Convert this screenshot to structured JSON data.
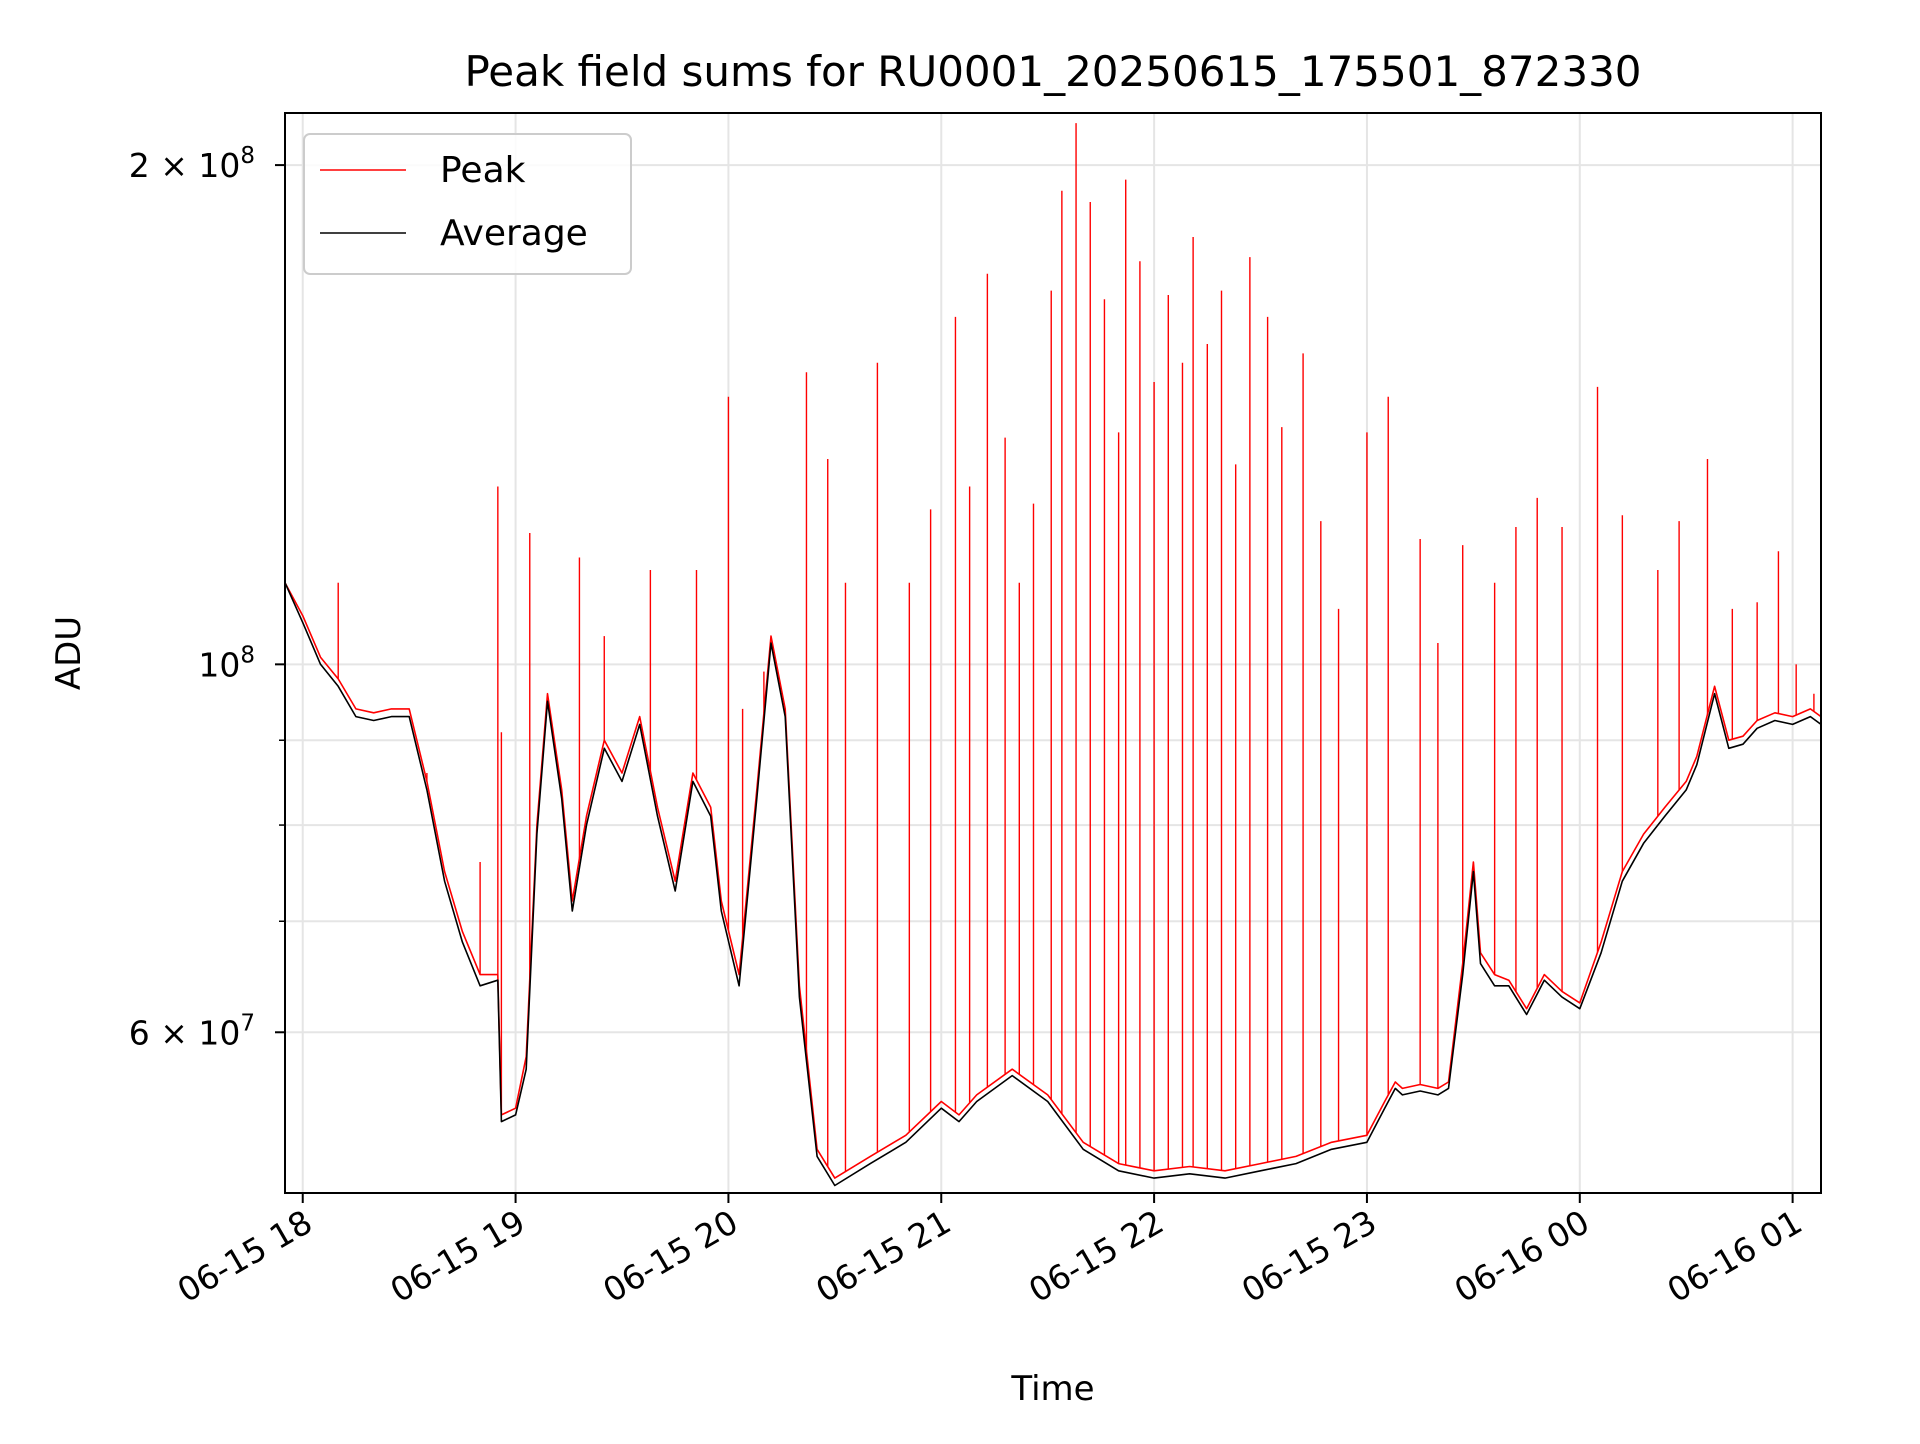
{
  "chart_data": {
    "type": "line",
    "title": "Peak field sums for RU0001_20250615_175501_872330",
    "xlabel": "Time",
    "ylabel": "ADU",
    "y_scale": "log",
    "grid": true,
    "legend_position": "top-left",
    "xlim": [
      "2025-06-15 17:55",
      "2025-06-16 01:08"
    ],
    "ylim": [
      48000000,
      215000000
    ],
    "x_ticks": [
      {
        "t": "2025-06-15 18:00",
        "label": "06-15 18"
      },
      {
        "t": "2025-06-15 19:00",
        "label": "06-15 19"
      },
      {
        "t": "2025-06-15 20:00",
        "label": "06-15 20"
      },
      {
        "t": "2025-06-15 21:00",
        "label": "06-15 21"
      },
      {
        "t": "2025-06-15 22:00",
        "label": "06-15 22"
      },
      {
        "t": "2025-06-15 23:00",
        "label": "06-15 23"
      },
      {
        "t": "2025-06-16 00:00",
        "label": "06-16 00"
      },
      {
        "t": "2025-06-16 01:00",
        "label": "06-16 01"
      }
    ],
    "y_ticks": [
      {
        "v": 60000000,
        "label": "6 × 10",
        "exp": "7"
      },
      {
        "v": 100000000,
        "label": "10",
        "exp": "8"
      },
      {
        "v": 200000000,
        "label": "2 × 10",
        "exp": "8"
      }
    ],
    "y_minor_ticks": [
      70000000,
      80000000,
      90000000
    ],
    "series": [
      {
        "name": "Peak",
        "color": "#ff0000",
        "baseline": [
          [
            "2025-06-15 17:55",
            112000000
          ],
          [
            "2025-06-15 18:00",
            107000000
          ],
          [
            "2025-06-15 18:05",
            101000000
          ],
          [
            "2025-06-15 18:10",
            98000000
          ],
          [
            "2025-06-15 18:15",
            94000000
          ],
          [
            "2025-06-15 18:20",
            93500000
          ],
          [
            "2025-06-15 18:25",
            94000000
          ],
          [
            "2025-06-15 18:30",
            94000000
          ],
          [
            "2025-06-15 18:35",
            85000000
          ],
          [
            "2025-06-15 18:40",
            75000000
          ],
          [
            "2025-06-15 18:45",
            69000000
          ],
          [
            "2025-06-15 18:50",
            65000000
          ],
          [
            "2025-06-15 18:55",
            65000000
          ],
          [
            "2025-06-15 18:56",
            53500000
          ],
          [
            "2025-06-15 19:00",
            54000000
          ],
          [
            "2025-06-15 19:03",
            58000000
          ],
          [
            "2025-06-15 19:06",
            80000000
          ],
          [
            "2025-06-15 19:09",
            96000000
          ],
          [
            "2025-06-15 19:13",
            84000000
          ],
          [
            "2025-06-15 19:16",
            72000000
          ],
          [
            "2025-06-15 19:20",
            81000000
          ],
          [
            "2025-06-15 19:25",
            90000000
          ],
          [
            "2025-06-15 19:30",
            86000000
          ],
          [
            "2025-06-15 19:35",
            93000000
          ],
          [
            "2025-06-15 19:40",
            82000000
          ],
          [
            "2025-06-15 19:45",
            74000000
          ],
          [
            "2025-06-15 19:50",
            86000000
          ],
          [
            "2025-06-15 19:55",
            82000000
          ],
          [
            "2025-06-15 19:58",
            72000000
          ],
          [
            "2025-06-15 20:03",
            65000000
          ],
          [
            "2025-06-15 20:08",
            84000000
          ],
          [
            "2025-06-15 20:12",
            104000000
          ],
          [
            "2025-06-15 20:16",
            94000000
          ],
          [
            "2025-06-15 20:20",
            64000000
          ],
          [
            "2025-06-15 20:25",
            51000000
          ],
          [
            "2025-06-15 20:30",
            49000000
          ],
          [
            "2025-06-15 20:40",
            50500000
          ],
          [
            "2025-06-15 20:50",
            52000000
          ],
          [
            "2025-06-15 21:00",
            54500000
          ],
          [
            "2025-06-15 21:05",
            53500000
          ],
          [
            "2025-06-15 21:10",
            55000000
          ],
          [
            "2025-06-15 21:20",
            57000000
          ],
          [
            "2025-06-15 21:30",
            55000000
          ],
          [
            "2025-06-15 21:40",
            51500000
          ],
          [
            "2025-06-15 21:50",
            50000000
          ],
          [
            "2025-06-15 22:00",
            49500000
          ],
          [
            "2025-06-15 22:10",
            49800000
          ],
          [
            "2025-06-15 22:20",
            49500000
          ],
          [
            "2025-06-15 22:30",
            50000000
          ],
          [
            "2025-06-15 22:40",
            50500000
          ],
          [
            "2025-06-15 22:50",
            51500000
          ],
          [
            "2025-06-15 23:00",
            52000000
          ],
          [
            "2025-06-15 23:05",
            54500000
          ],
          [
            "2025-06-15 23:08",
            56000000
          ],
          [
            "2025-06-15 23:10",
            55500000
          ],
          [
            "2025-06-15 23:15",
            55800000
          ],
          [
            "2025-06-15 23:20",
            55500000
          ],
          [
            "2025-06-15 23:23",
            56000000
          ],
          [
            "2025-06-15 23:27",
            66000000
          ],
          [
            "2025-06-15 23:30",
            76000000
          ],
          [
            "2025-06-15 23:32",
            67000000
          ],
          [
            "2025-06-15 23:36",
            65000000
          ],
          [
            "2025-06-15 23:40",
            64500000
          ],
          [
            "2025-06-15 23:45",
            62000000
          ],
          [
            "2025-06-15 23:50",
            65000000
          ],
          [
            "2025-06-15 23:55",
            63500000
          ],
          [
            "2025-06-16 00:00",
            62500000
          ],
          [
            "2025-06-16 00:06",
            68000000
          ],
          [
            "2025-06-16 00:12",
            75000000
          ],
          [
            "2025-06-16 00:18",
            79000000
          ],
          [
            "2025-06-16 00:24",
            82000000
          ],
          [
            "2025-06-16 00:30",
            85000000
          ],
          [
            "2025-06-16 00:33",
            88000000
          ],
          [
            "2025-06-16 00:38",
            97000000
          ],
          [
            "2025-06-16 00:42",
            90000000
          ],
          [
            "2025-06-16 00:46",
            90500000
          ],
          [
            "2025-06-16 00:50",
            92500000
          ],
          [
            "2025-06-16 00:55",
            93500000
          ],
          [
            "2025-06-16 01:00",
            93000000
          ],
          [
            "2025-06-16 01:05",
            94000000
          ],
          [
            "2025-06-16 01:08",
            93000000
          ]
        ],
        "spikes": [
          [
            "2025-06-15 18:10",
            112000000
          ],
          [
            "2025-06-15 18:35",
            86000000
          ],
          [
            "2025-06-15 18:50",
            76000000
          ],
          [
            "2025-06-15 18:55",
            128000000
          ],
          [
            "2025-06-15 18:56",
            91000000
          ],
          [
            "2025-06-15 19:04",
            120000000
          ],
          [
            "2025-06-15 19:18",
            116000000
          ],
          [
            "2025-06-15 19:25",
            104000000
          ],
          [
            "2025-06-15 19:38",
            114000000
          ],
          [
            "2025-06-15 19:51",
            114000000
          ],
          [
            "2025-06-15 20:00",
            145000000
          ],
          [
            "2025-06-15 20:04",
            94000000
          ],
          [
            "2025-06-15 20:10",
            99000000
          ],
          [
            "2025-06-15 20:22",
            150000000
          ],
          [
            "2025-06-15 20:28",
            133000000
          ],
          [
            "2025-06-15 20:33",
            112000000
          ],
          [
            "2025-06-15 20:42",
            152000000
          ],
          [
            "2025-06-15 20:51",
            112000000
          ],
          [
            "2025-06-15 20:57",
            124000000
          ],
          [
            "2025-06-15 21:04",
            162000000
          ],
          [
            "2025-06-15 21:08",
            128000000
          ],
          [
            "2025-06-15 21:13",
            172000000
          ],
          [
            "2025-06-15 21:18",
            137000000
          ],
          [
            "2025-06-15 21:22",
            112000000
          ],
          [
            "2025-06-15 21:26",
            125000000
          ],
          [
            "2025-06-15 21:31",
            168000000
          ],
          [
            "2025-06-15 21:34",
            193000000
          ],
          [
            "2025-06-15 21:38",
            212000000
          ],
          [
            "2025-06-15 21:42",
            190000000
          ],
          [
            "2025-06-15 21:46",
            166000000
          ],
          [
            "2025-06-15 21:50",
            138000000
          ],
          [
            "2025-06-15 21:52",
            196000000
          ],
          [
            "2025-06-15 21:56",
            175000000
          ],
          [
            "2025-06-15 22:00",
            148000000
          ],
          [
            "2025-06-15 22:04",
            167000000
          ],
          [
            "2025-06-15 22:08",
            152000000
          ],
          [
            "2025-06-15 22:11",
            181000000
          ],
          [
            "2025-06-15 22:15",
            156000000
          ],
          [
            "2025-06-15 22:19",
            168000000
          ],
          [
            "2025-06-15 22:23",
            132000000
          ],
          [
            "2025-06-15 22:27",
            176000000
          ],
          [
            "2025-06-15 22:32",
            162000000
          ],
          [
            "2025-06-15 22:36",
            139000000
          ],
          [
            "2025-06-15 22:42",
            154000000
          ],
          [
            "2025-06-15 22:47",
            122000000
          ],
          [
            "2025-06-15 22:52",
            108000000
          ],
          [
            "2025-06-15 23:00",
            138000000
          ],
          [
            "2025-06-15 23:06",
            145000000
          ],
          [
            "2025-06-15 23:15",
            119000000
          ],
          [
            "2025-06-15 23:20",
            103000000
          ],
          [
            "2025-06-15 23:27",
            118000000
          ],
          [
            "2025-06-15 23:36",
            112000000
          ],
          [
            "2025-06-15 23:42",
            121000000
          ],
          [
            "2025-06-15 23:48",
            126000000
          ],
          [
            "2025-06-15 23:55",
            121000000
          ],
          [
            "2025-06-16 00:05",
            147000000
          ],
          [
            "2025-06-16 00:12",
            123000000
          ],
          [
            "2025-06-16 00:22",
            114000000
          ],
          [
            "2025-06-16 00:28",
            122000000
          ],
          [
            "2025-06-16 00:36",
            133000000
          ],
          [
            "2025-06-16 00:43",
            108000000
          ],
          [
            "2025-06-16 00:50",
            109000000
          ],
          [
            "2025-06-16 00:56",
            117000000
          ],
          [
            "2025-06-16 01:01",
            100000000
          ],
          [
            "2025-06-16 01:06",
            96000000
          ]
        ]
      },
      {
        "name": "Average",
        "color": "#000000",
        "values": [
          [
            "2025-06-15 17:55",
            112000000
          ],
          [
            "2025-06-15 18:00",
            106000000
          ],
          [
            "2025-06-15 18:05",
            100000000
          ],
          [
            "2025-06-15 18:10",
            97000000
          ],
          [
            "2025-06-15 18:15",
            93000000
          ],
          [
            "2025-06-15 18:20",
            92500000
          ],
          [
            "2025-06-15 18:25",
            93000000
          ],
          [
            "2025-06-15 18:30",
            93000000
          ],
          [
            "2025-06-15 18:35",
            84000000
          ],
          [
            "2025-06-15 18:40",
            74000000
          ],
          [
            "2025-06-15 18:45",
            68000000
          ],
          [
            "2025-06-15 18:50",
            64000000
          ],
          [
            "2025-06-15 18:55",
            64500000
          ],
          [
            "2025-06-15 18:56",
            53000000
          ],
          [
            "2025-06-15 19:00",
            53500000
          ],
          [
            "2025-06-15 19:03",
            57000000
          ],
          [
            "2025-06-15 19:06",
            79000000
          ],
          [
            "2025-06-15 19:09",
            95000000
          ],
          [
            "2025-06-15 19:13",
            83000000
          ],
          [
            "2025-06-15 19:16",
            71000000
          ],
          [
            "2025-06-15 19:20",
            80000000
          ],
          [
            "2025-06-15 19:25",
            89000000
          ],
          [
            "2025-06-15 19:30",
            85000000
          ],
          [
            "2025-06-15 19:35",
            92000000
          ],
          [
            "2025-06-15 19:40",
            81000000
          ],
          [
            "2025-06-15 19:45",
            73000000
          ],
          [
            "2025-06-15 19:50",
            85000000
          ],
          [
            "2025-06-15 19:55",
            81000000
          ],
          [
            "2025-06-15 19:58",
            71000000
          ],
          [
            "2025-06-15 20:03",
            64000000
          ],
          [
            "2025-06-15 20:08",
            83000000
          ],
          [
            "2025-06-15 20:12",
            103000000
          ],
          [
            "2025-06-15 20:16",
            93000000
          ],
          [
            "2025-06-15 20:20",
            63000000
          ],
          [
            "2025-06-15 20:25",
            50500000
          ],
          [
            "2025-06-15 20:30",
            48500000
          ],
          [
            "2025-06-15 20:40",
            50000000
          ],
          [
            "2025-06-15 20:50",
            51500000
          ],
          [
            "2025-06-15 21:00",
            54000000
          ],
          [
            "2025-06-15 21:05",
            53000000
          ],
          [
            "2025-06-15 21:10",
            54500000
          ],
          [
            "2025-06-15 21:20",
            56500000
          ],
          [
            "2025-06-15 21:30",
            54500000
          ],
          [
            "2025-06-15 21:40",
            51000000
          ],
          [
            "2025-06-15 21:50",
            49500000
          ],
          [
            "2025-06-15 22:00",
            49000000
          ],
          [
            "2025-06-15 22:10",
            49300000
          ],
          [
            "2025-06-15 22:20",
            49000000
          ],
          [
            "2025-06-15 22:30",
            49500000
          ],
          [
            "2025-06-15 22:40",
            50000000
          ],
          [
            "2025-06-15 22:50",
            51000000
          ],
          [
            "2025-06-15 23:00",
            51500000
          ],
          [
            "2025-06-15 23:05",
            54000000
          ],
          [
            "2025-06-15 23:08",
            55500000
          ],
          [
            "2025-06-15 23:10",
            55000000
          ],
          [
            "2025-06-15 23:15",
            55300000
          ],
          [
            "2025-06-15 23:20",
            55000000
          ],
          [
            "2025-06-15 23:23",
            55500000
          ],
          [
            "2025-06-15 23:27",
            65000000
          ],
          [
            "2025-06-15 23:30",
            75000000
          ],
          [
            "2025-06-15 23:32",
            66000000
          ],
          [
            "2025-06-15 23:36",
            64000000
          ],
          [
            "2025-06-15 23:40",
            64000000
          ],
          [
            "2025-06-15 23:45",
            61500000
          ],
          [
            "2025-06-15 23:50",
            64500000
          ],
          [
            "2025-06-15 23:55",
            63000000
          ],
          [
            "2025-06-16 00:00",
            62000000
          ],
          [
            "2025-06-16 00:06",
            67000000
          ],
          [
            "2025-06-16 00:12",
            74000000
          ],
          [
            "2025-06-16 00:18",
            78000000
          ],
          [
            "2025-06-16 00:24",
            81000000
          ],
          [
            "2025-06-16 00:30",
            84000000
          ],
          [
            "2025-06-16 00:33",
            87000000
          ],
          [
            "2025-06-16 00:38",
            96000000
          ],
          [
            "2025-06-16 00:42",
            89000000
          ],
          [
            "2025-06-16 00:46",
            89500000
          ],
          [
            "2025-06-16 00:50",
            91500000
          ],
          [
            "2025-06-16 00:55",
            92500000
          ],
          [
            "2025-06-16 01:00",
            92000000
          ],
          [
            "2025-06-16 01:05",
            93000000
          ],
          [
            "2025-06-16 01:08",
            92000000
          ]
        ]
      }
    ]
  }
}
